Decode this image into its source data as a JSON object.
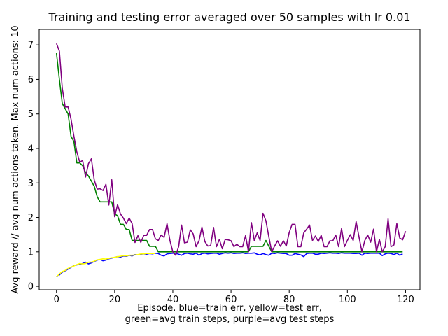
{
  "chart_data": {
    "type": "line",
    "title": "Training and testing error averaged over 50 samples with lr 0.01",
    "xlabel_line1": "Episode.  blue=train err, yellow=test err,",
    "xlabel_line2": "green=avg train steps, purple=avg test steps",
    "ylabel": "Avg reward // avg num actions taken.  Max num actions: 10",
    "xlim": [
      -5.95,
      124.95
    ],
    "ylim": [
      -0.1,
      7.45
    ],
    "xticks": [
      0,
      20,
      40,
      60,
      80,
      100,
      120
    ],
    "yticks": [
      0,
      1,
      2,
      3,
      4,
      5,
      6,
      7
    ],
    "series": [
      {
        "key": "train_err",
        "color": "#0000ff",
        "values": [
          0.27,
          0.33,
          0.41,
          0.45,
          0.5,
          0.55,
          0.6,
          0.62,
          0.64,
          0.66,
          0.7,
          0.65,
          0.68,
          0.72,
          0.76,
          0.78,
          0.74,
          0.76,
          0.8,
          0.82,
          0.84,
          0.86,
          0.85,
          0.88,
          0.87,
          0.9,
          0.88,
          0.92,
          0.91,
          0.93,
          0.94,
          0.93,
          0.95,
          0.94,
          0.96,
          0.95,
          0.9,
          0.88,
          0.94,
          0.95,
          0.96,
          0.96,
          0.93,
          0.9,
          0.95,
          0.96,
          0.94,
          0.93,
          0.96,
          0.9,
          0.95,
          0.96,
          0.94,
          0.95,
          0.96,
          0.96,
          0.93,
          0.95,
          0.97,
          0.96,
          0.97,
          0.95,
          0.96,
          0.96,
          0.97,
          0.95,
          0.96,
          0.96,
          0.97,
          0.93,
          0.91,
          0.95,
          0.92,
          0.9,
          0.96,
          0.95,
          0.97,
          0.96,
          0.95,
          0.95,
          0.9,
          0.9,
          0.95,
          0.93,
          0.91,
          0.86,
          0.95,
          0.96,
          0.96,
          0.93,
          0.93,
          0.96,
          0.95,
          0.96,
          0.97,
          0.96,
          0.96,
          0.95,
          0.97,
          0.96,
          0.96,
          0.96,
          0.95,
          0.95,
          0.96,
          0.9,
          0.96,
          0.95,
          0.96,
          0.96,
          0.96,
          0.96,
          0.89,
          0.94,
          0.96,
          0.95,
          0.92,
          0.96,
          0.9,
          0.94
        ]
      },
      {
        "key": "test_err",
        "color": "#ffff00",
        "values": [
          0.27,
          0.36,
          0.43,
          0.46,
          0.52,
          0.56,
          0.59,
          0.63,
          0.66,
          0.65,
          0.66,
          0.7,
          0.7,
          0.73,
          0.77,
          0.78,
          0.8,
          0.79,
          0.81,
          0.83,
          0.84,
          0.86,
          0.87,
          0.89,
          0.88,
          0.9,
          0.9,
          0.91,
          0.92,
          0.94,
          0.94,
          0.95,
          0.95,
          0.95,
          0.95
        ]
      },
      {
        "key": "avg_train_steps",
        "color": "#008000",
        "values": [
          6.76,
          6.0,
          5.3,
          5.15,
          5.0,
          4.35,
          4.2,
          3.58,
          3.58,
          3.5,
          3.3,
          3.2,
          3.05,
          2.9,
          2.6,
          2.45,
          2.45,
          2.45,
          2.45,
          2.45,
          2.1,
          2.05,
          1.8,
          1.8,
          1.65,
          1.65,
          1.33,
          1.33,
          1.33,
          1.33,
          1.33,
          1.33,
          1.16,
          1.16,
          1.16,
          1.0,
          1.0,
          1.0,
          1.0,
          1.0,
          1.0,
          1.0,
          1.0,
          1.0,
          1.0,
          1.0,
          1.0,
          1.0,
          1.0,
          1.0,
          1.0,
          1.0,
          1.0,
          1.0,
          1.0,
          1.0,
          1.0,
          1.0,
          1.0,
          1.0,
          1.0,
          1.0,
          1.0,
          1.0,
          1.0,
          1.0,
          1.0,
          1.16,
          1.16,
          1.16,
          1.16,
          1.16,
          1.33,
          1.16,
          1.0,
          1.0,
          1.0,
          1.0,
          1.0,
          1.0,
          1.0,
          1.0,
          1.0,
          1.0,
          1.0,
          1.0,
          1.0,
          1.0,
          1.0,
          1.0,
          1.0,
          1.0,
          1.0,
          1.0,
          1.0,
          1.0,
          1.0,
          1.0,
          1.0,
          1.0,
          1.0,
          1.0,
          1.0,
          1.0,
          1.0,
          1.0,
          1.0,
          1.0,
          1.0,
          1.0,
          1.0,
          1.0,
          1.0,
          1.0,
          1.0,
          1.0,
          1.0,
          1.0,
          1.0,
          1.0
        ]
      },
      {
        "key": "avg_test_steps",
        "color": "#800080",
        "values": [
          7.04,
          6.82,
          5.74,
          5.2,
          5.2,
          4.85,
          4.35,
          3.9,
          3.6,
          3.65,
          3.17,
          3.56,
          3.7,
          3.08,
          2.82,
          2.83,
          2.78,
          2.96,
          2.36,
          3.09,
          2.02,
          2.37,
          2.1,
          1.98,
          1.82,
          1.98,
          1.82,
          1.27,
          1.47,
          1.27,
          1.48,
          1.48,
          1.65,
          1.65,
          1.38,
          1.33,
          1.49,
          1.42,
          1.82,
          1.33,
          1.0,
          0.9,
          1.15,
          1.78,
          1.26,
          1.28,
          1.64,
          1.52,
          1.15,
          1.32,
          1.72,
          1.3,
          1.17,
          1.18,
          1.71,
          1.15,
          1.36,
          1.09,
          1.36,
          1.35,
          1.32,
          1.15,
          1.22,
          1.15,
          1.15,
          1.47,
          1.0,
          1.85,
          1.33,
          1.55,
          1.33,
          2.12,
          1.9,
          1.44,
          1.0,
          1.17,
          1.32,
          1.16,
          1.32,
          1.17,
          1.56,
          1.8,
          1.8,
          1.15,
          1.15,
          1.55,
          1.66,
          1.78,
          1.33,
          1.46,
          1.3,
          1.48,
          1.15,
          1.15,
          1.32,
          1.32,
          1.49,
          1.15,
          1.68,
          1.15,
          1.33,
          1.5,
          1.33,
          1.88,
          1.43,
          1.0,
          1.33,
          1.49,
          1.28,
          1.66,
          1.0,
          1.36,
          1.0,
          1.15,
          1.96,
          1.15,
          1.2,
          1.82,
          1.4,
          1.35,
          1.6
        ]
      }
    ]
  }
}
